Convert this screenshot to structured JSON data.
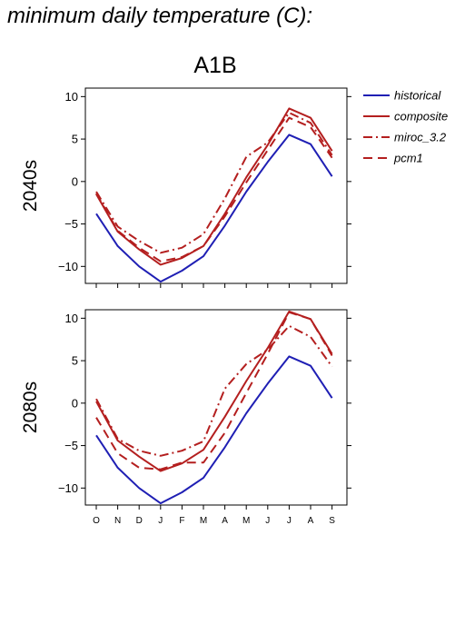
{
  "page": {
    "title": "minimum daily temperature (C):"
  },
  "colors": {
    "historical": "#1f1fb4",
    "scenario": "#b41f1f"
  },
  "chart_data": {
    "type": "line",
    "title": "A1B",
    "categories": [
      "O",
      "N",
      "D",
      "J",
      "F",
      "M",
      "A",
      "M",
      "J",
      "J",
      "A",
      "S"
    ],
    "ylim": [
      -12,
      11
    ],
    "yticks": [
      -10,
      -5,
      0,
      5,
      10
    ],
    "ytick_labels": [
      "−10",
      "−5",
      "0",
      "5",
      "10"
    ],
    "grid": false,
    "legend": {
      "placement": "right",
      "entries": [
        {
          "name": "historical",
          "style": "solid",
          "color": "#1f1fb4"
        },
        {
          "name": "composite",
          "style": "solid",
          "color": "#b41f1f"
        },
        {
          "name": "miroc_3.2",
          "style": "dashdot",
          "color": "#b41f1f"
        },
        {
          "name": "pcm1",
          "style": "dashed",
          "color": "#b41f1f"
        }
      ]
    },
    "panels": [
      {
        "ylabel": "2040s",
        "series": [
          {
            "name": "historical",
            "style": "solid",
            "color": "#1f1fb4",
            "values": [
              -3.8,
              -7.6,
              -10.0,
              -11.8,
              -10.5,
              -8.8,
              -5.2,
              -1.2,
              2.3,
              5.5,
              4.4,
              0.6
            ]
          },
          {
            "name": "composite",
            "style": "solid",
            "color": "#b41f1f",
            "values": [
              -1.5,
              -5.9,
              -8.0,
              -9.8,
              -9.0,
              -7.6,
              -3.8,
              0.5,
              4.3,
              8.6,
              7.5,
              3.6
            ]
          },
          {
            "name": "miroc_3.2",
            "style": "dashdot",
            "color": "#b41f1f",
            "values": [
              -1.2,
              -5.3,
              -7.0,
              -8.4,
              -7.8,
              -6.2,
              -2.0,
              2.9,
              4.6,
              8.1,
              6.9,
              3.1
            ]
          },
          {
            "name": "pcm1",
            "style": "dashed",
            "color": "#b41f1f",
            "values": [
              -1.4,
              -5.8,
              -7.8,
              -9.4,
              -8.9,
              -7.6,
              -4.1,
              -0.1,
              3.7,
              7.5,
              6.4,
              2.8
            ]
          }
        ]
      },
      {
        "ylabel": "2080s",
        "series": [
          {
            "name": "historical",
            "style": "solid",
            "color": "#1f1fb4",
            "values": [
              -3.8,
              -7.6,
              -10.0,
              -11.8,
              -10.5,
              -8.8,
              -5.2,
              -1.2,
              2.3,
              5.5,
              4.4,
              0.6
            ]
          },
          {
            "name": "composite",
            "style": "solid",
            "color": "#b41f1f",
            "values": [
              0.2,
              -4.4,
              -6.3,
              -8.0,
              -7.1,
              -5.5,
              -1.6,
              2.6,
              6.5,
              10.8,
              9.9,
              5.8
            ]
          },
          {
            "name": "miroc_3.2",
            "style": "dashdot",
            "color": "#b41f1f",
            "values": [
              0.5,
              -4.2,
              -5.6,
              -6.2,
              -5.6,
              -4.5,
              1.7,
              4.6,
              6.3,
              9.1,
              7.8,
              4.3
            ]
          },
          {
            "name": "pcm1",
            "style": "dashed",
            "color": "#b41f1f",
            "values": [
              -1.7,
              -5.9,
              -7.6,
              -7.8,
              -7.0,
              -7.0,
              -3.5,
              1.2,
              5.8,
              10.7,
              9.9,
              5.6
            ]
          }
        ]
      }
    ]
  }
}
